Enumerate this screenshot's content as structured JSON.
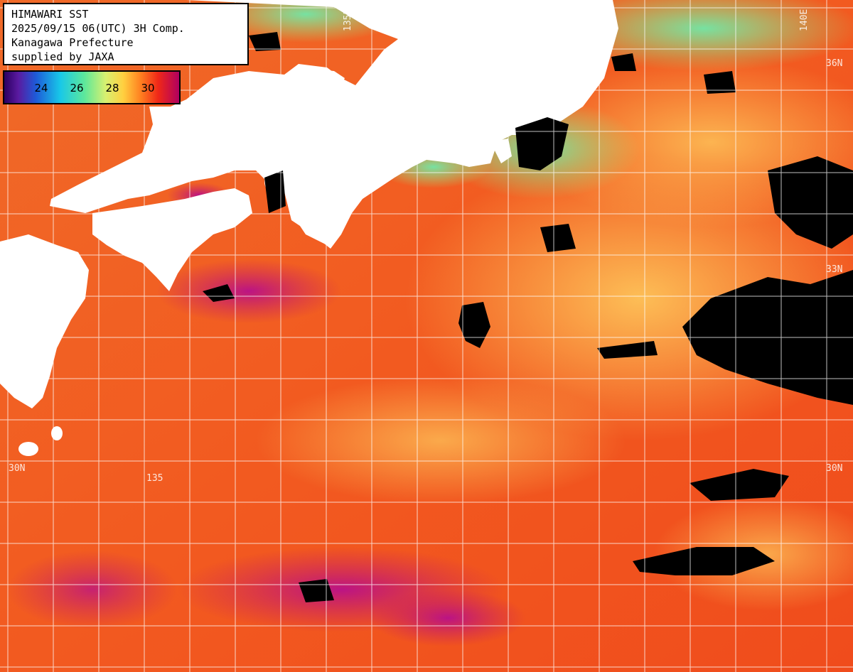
{
  "info": {
    "line1": "HIMAWARI SST",
    "line2": "2025/09/15 06(UTC) 3H Comp.",
    "line3": "Kanagawa Prefecture",
    "line4": "supplied by JAXA"
  },
  "colorbar": {
    "ticks": [
      "24",
      "26",
      "28",
      "30"
    ]
  },
  "grid_labels": {
    "lat_30n_left": "30N",
    "lat_30n_right": "30N",
    "lat_33n_right": "33N",
    "lat_36n_right": "36N",
    "lon_135e": "135E",
    "lon_140e": "140E",
    "lon_135e_bottom": "135"
  },
  "colors": {
    "land": "#ffffff",
    "cloud_no_data": "#000000",
    "warm_30": "#f02818",
    "hot_31": "#b0107a",
    "mid_28": "#ffb040",
    "cool_26": "#80e8a0",
    "cool_25": "#38d8c8",
    "grid": "#ffffff"
  }
}
